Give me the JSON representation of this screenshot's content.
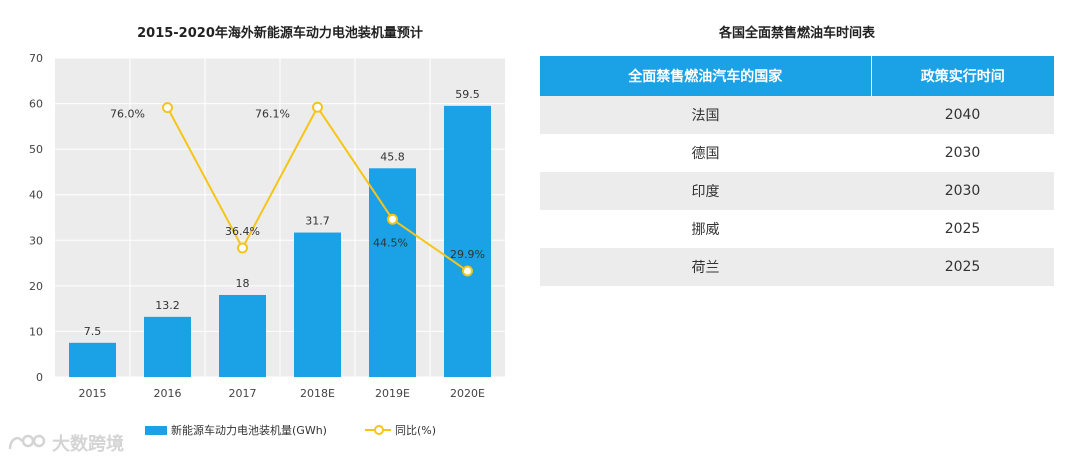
{
  "chart_data": {
    "type": "bar+line",
    "title": "2015-2020年海外新能源车动力电池装机量预计",
    "categories": [
      "2015",
      "2016",
      "2017",
      "2018E",
      "2019E",
      "2020E"
    ],
    "series": [
      {
        "name": "新能源车动力电池装机量(GWh)",
        "type": "bar",
        "axis": "left",
        "values": [
          7.5,
          13.2,
          18,
          31.7,
          45.8,
          59.5
        ],
        "labels": [
          "7.5",
          "13.2",
          "18",
          "31.7",
          "45.8",
          "59.5"
        ]
      },
      {
        "name": "同比(%)",
        "type": "line",
        "axis": "right",
        "values": [
          null,
          76.0,
          36.4,
          76.1,
          44.5,
          29.9
        ],
        "labels": [
          "",
          "76.0%",
          "36.4%",
          "76.1%",
          "44.5%",
          "29.9%"
        ]
      }
    ],
    "ylim": [
      0,
      70
    ],
    "yticks": [
      "0",
      "10",
      "20",
      "30",
      "40",
      "50",
      "60",
      "70"
    ],
    "y2lim": [
      0,
      90
    ],
    "grid": true,
    "legend": "bottom",
    "colors": {
      "bar": "#1aa1e6",
      "line": "#f5c518"
    }
  },
  "table": {
    "title": "各国全面禁售燃油车时间表",
    "headers": [
      "全面禁售燃油汽车的国家",
      "政策实行时间"
    ],
    "rows": [
      [
        "法国",
        "2040"
      ],
      [
        "德国",
        "2030"
      ],
      [
        "印度",
        "2030"
      ],
      [
        "挪威",
        "2025"
      ],
      [
        "荷兰",
        "2025"
      ]
    ]
  },
  "watermark": "大数跨境"
}
